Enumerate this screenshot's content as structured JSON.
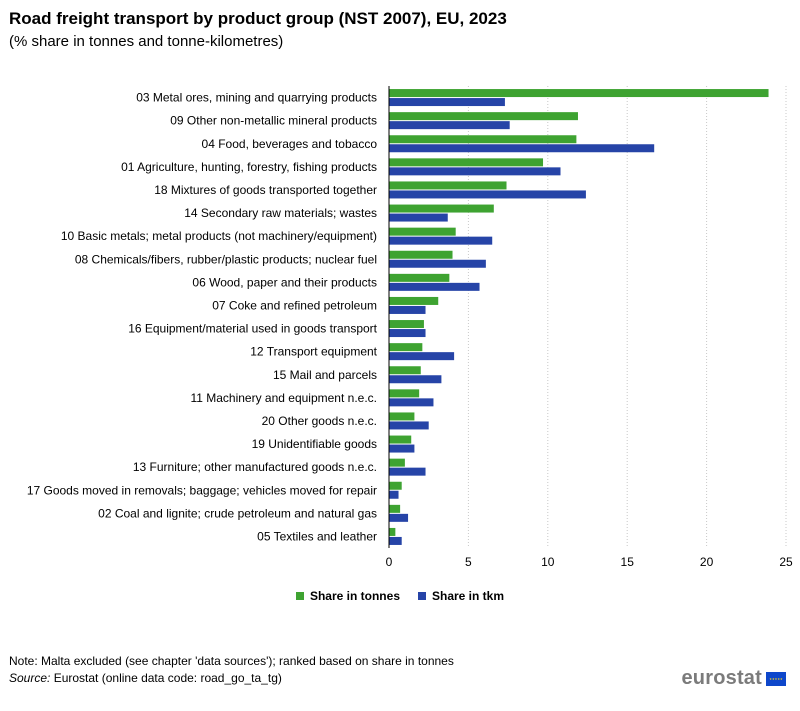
{
  "title": "Road freight transport by product group (NST 2007), EU, 2023",
  "subtitle": "(% share in tonnes and tonne-kilometres)",
  "note": "Note: Malta excluded (see chapter 'data sources'); ranked based on share in tonnes",
  "source": {
    "label": "Source:",
    "text": "Eurostat (online data code: road_go_ta_tg)"
  },
  "logo": {
    "text": "eurostat",
    "icon": "eu-flag-icon"
  },
  "colors": {
    "tonnes": "#3ea331",
    "tkm": "#2644a7",
    "grid": "#c8c8c8"
  },
  "chart_data": {
    "type": "bar",
    "orientation": "horizontal",
    "title": "Road freight transport by product group (NST 2007), EU, 2023",
    "subtitle": "(% share in tonnes and tonne-kilometres)",
    "xlim": [
      0,
      25
    ],
    "xticks": [
      0,
      5,
      10,
      15,
      20,
      25
    ],
    "grid": true,
    "legend_position": "bottom-center",
    "categories": [
      "03 Metal ores, mining and quarrying products",
      "09 Other non-metallic mineral products",
      "04 Food, beverages and tobacco",
      "01 Agriculture, hunting, forestry, fishing products",
      "18 Mixtures of goods transported together",
      "14 Secondary raw materials; wastes",
      "10 Basic metals; metal products (not machinery/equipment)",
      "08 Chemicals/fibers, rubber/plastic products; nuclear fuel",
      "06 Wood, paper and their products",
      "07 Coke and refined petroleum",
      "16 Equipment/material used in goods transport",
      "12 Transport equipment",
      "15 Mail and parcels",
      "11 Machinery and equipment n.e.c.",
      "20 Other goods n.e.c.",
      "19 Unidentifiable goods",
      "13 Furniture; other manufactured goods n.e.c.",
      "17 Goods moved in removals; baggage; vehicles moved for repair",
      "02 Coal and lignite; crude petroleum and natural gas",
      "05 Textiles and leather"
    ],
    "series": [
      {
        "name": "Share in tonnes",
        "values": [
          23.9,
          11.9,
          11.8,
          9.7,
          7.4,
          6.6,
          4.2,
          4.0,
          3.8,
          3.1,
          2.2,
          2.1,
          2.0,
          1.9,
          1.6,
          1.4,
          1.0,
          0.8,
          0.7,
          0.4
        ]
      },
      {
        "name": "Share in tkm",
        "values": [
          7.3,
          7.6,
          16.7,
          10.8,
          12.4,
          3.7,
          6.5,
          6.1,
          5.7,
          2.3,
          2.3,
          4.1,
          3.3,
          2.8,
          2.5,
          1.6,
          2.3,
          0.6,
          1.2,
          0.8
        ]
      }
    ]
  }
}
